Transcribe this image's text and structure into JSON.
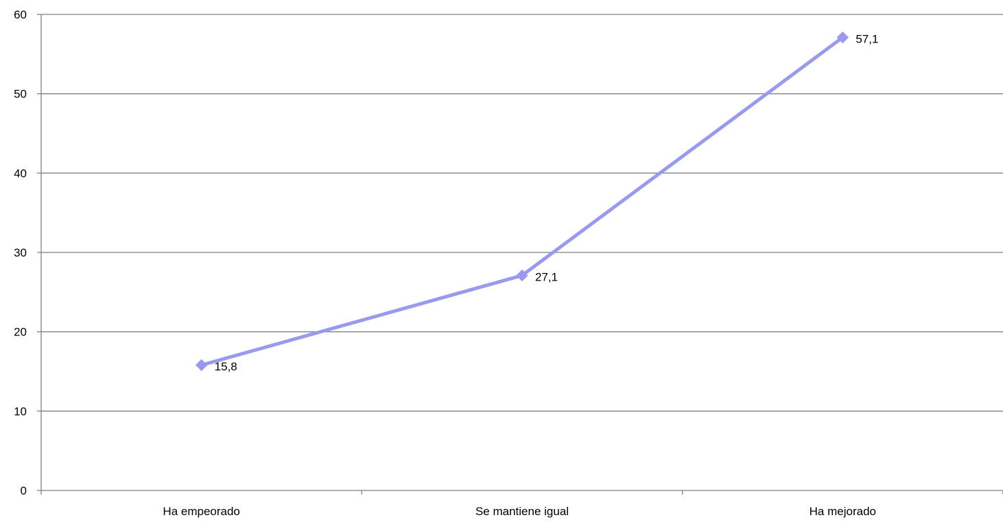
{
  "chart_data": {
    "type": "line",
    "categories": [
      "Ha empeorado",
      "Se mantiene igual",
      "Ha mejorado"
    ],
    "series": [
      {
        "values": [
          15.8,
          27.1,
          57.1
        ],
        "value_labels": [
          "15,8",
          "27,1",
          "57,1"
        ],
        "color": "#9999f0",
        "marker": "diamond"
      }
    ],
    "y_ticks": [
      "0",
      "10",
      "20",
      "30",
      "40",
      "50",
      "60"
    ],
    "ylim": [
      0,
      60
    ],
    "ystep": 10,
    "grid": true,
    "legend": "none",
    "colors": {
      "grid": "#808080",
      "axis": "#808080",
      "text": "#000000"
    }
  }
}
